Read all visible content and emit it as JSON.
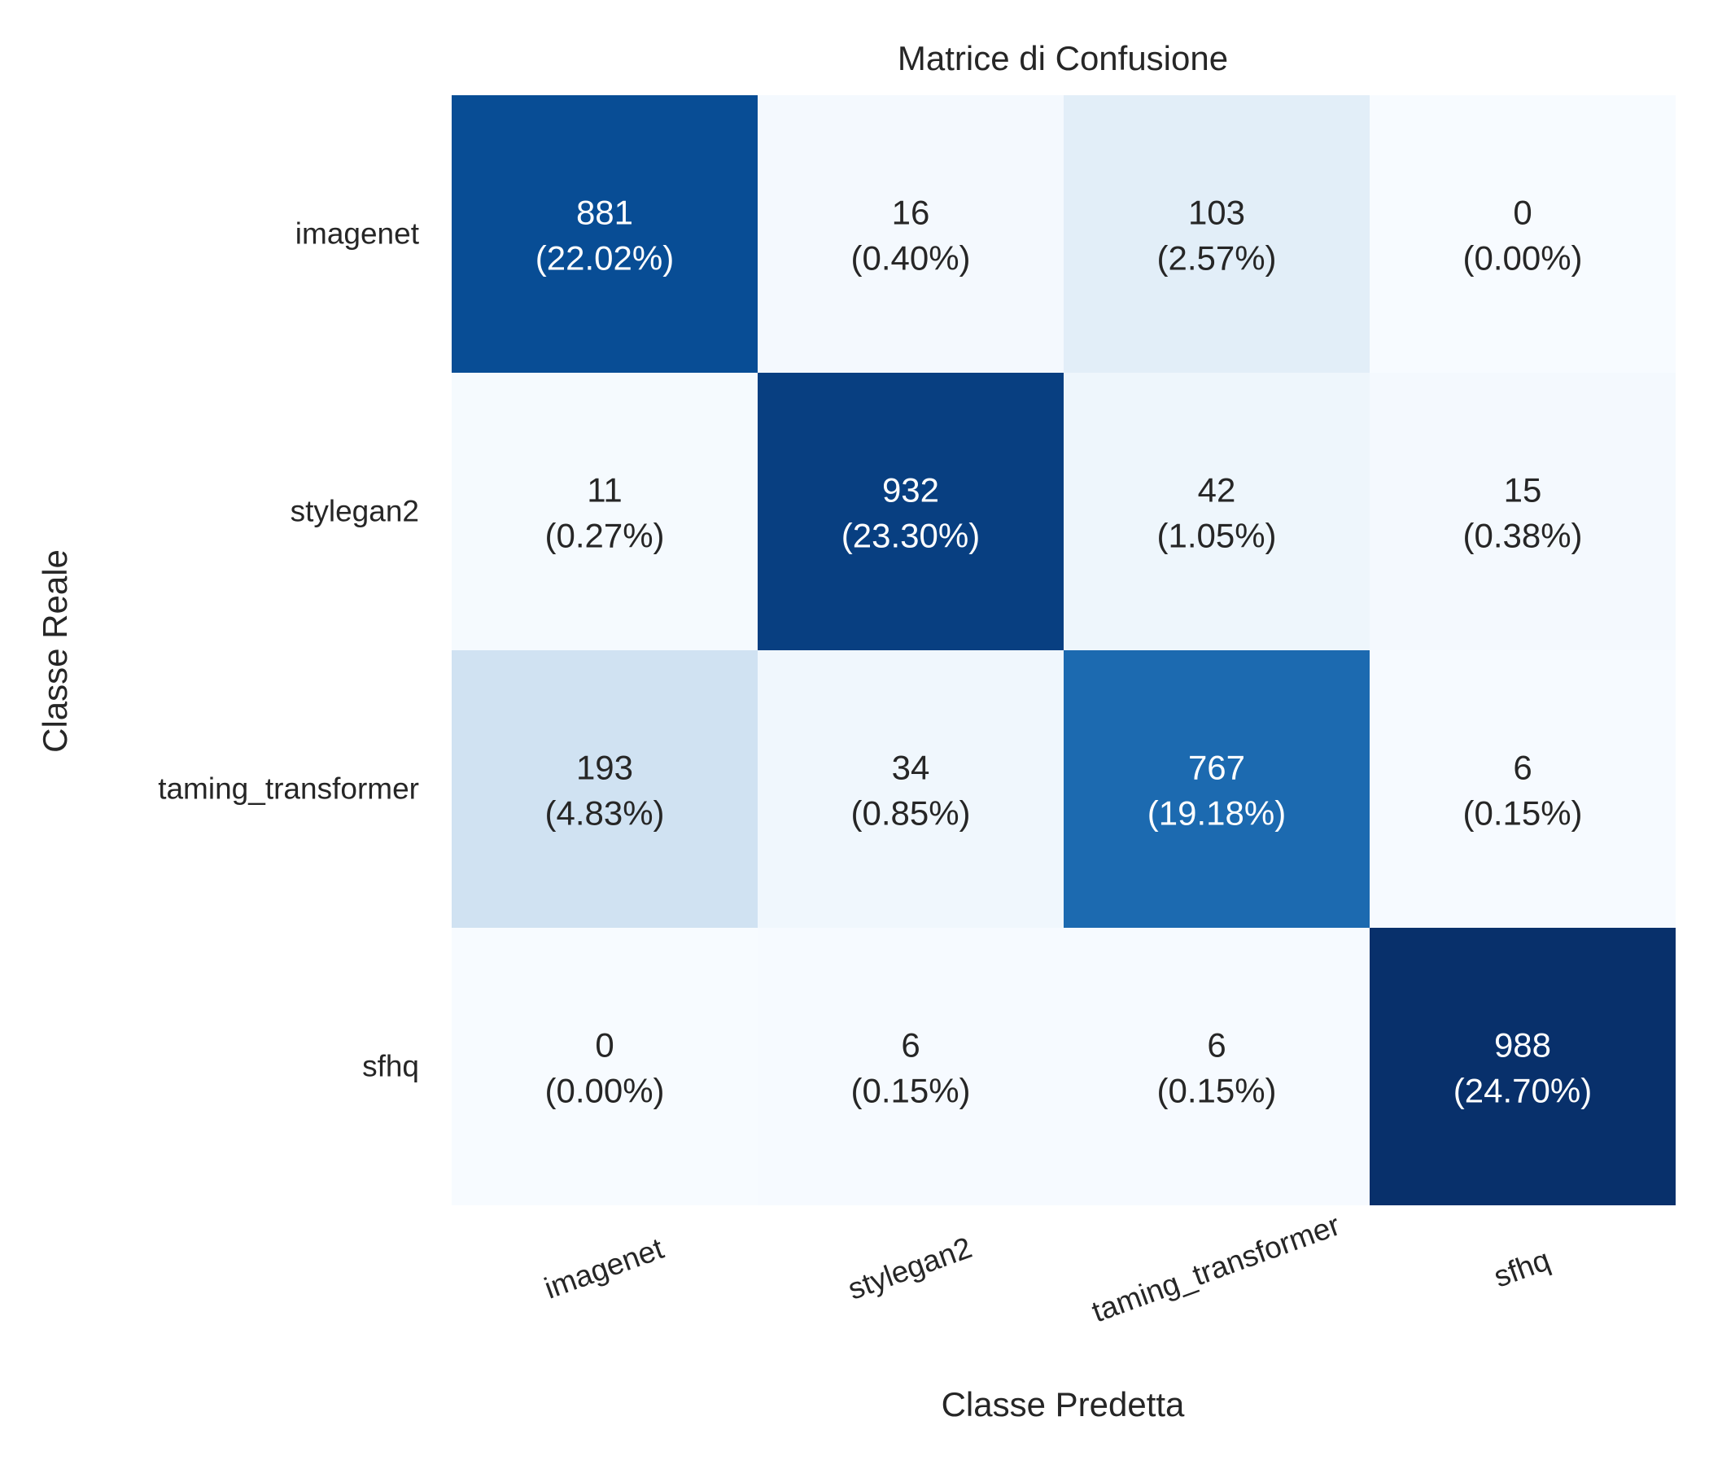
{
  "chart_data": {
    "type": "heatmap",
    "title": "Matrice di Confusione",
    "xlabel": "Classe Predetta",
    "ylabel": "Classe Reale",
    "x_categories": [
      "imagenet",
      "stylegan2",
      "taming_transformer",
      "sfhq"
    ],
    "y_categories": [
      "imagenet",
      "stylegan2",
      "taming_transformer",
      "sfhq"
    ],
    "values": [
      [
        881,
        16,
        103,
        0
      ],
      [
        11,
        932,
        42,
        15
      ],
      [
        193,
        34,
        767,
        6
      ],
      [
        0,
        6,
        6,
        988
      ]
    ],
    "percent_labels": [
      [
        "(22.02%)",
        "(0.40%)",
        "(2.57%)",
        "(0.00%)"
      ],
      [
        "(0.27%)",
        "(23.30%)",
        "(1.05%)",
        "(0.38%)"
      ],
      [
        "(4.83%)",
        "(0.85%)",
        "(19.18%)",
        "(0.15%)"
      ],
      [
        "(0.00%)",
        "(0.15%)",
        "(0.15%)",
        "(24.70%)"
      ]
    ],
    "colormap": "Blues",
    "color_low": "#f7fbff",
    "color_high": "#08306b",
    "vmin": 0,
    "vmax": 988,
    "colorbar": false,
    "grid": false
  }
}
